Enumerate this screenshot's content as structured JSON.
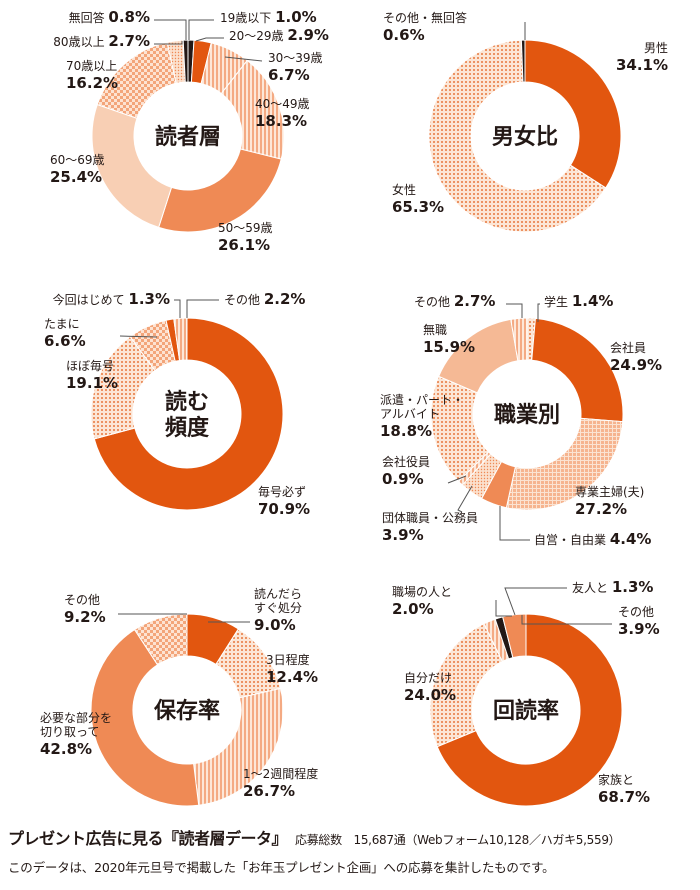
{
  "chart_data": [
    {
      "type": "pie",
      "title": "読者層",
      "categories": [
        "19歳以下",
        "20～29歳",
        "30～39歳",
        "40～49歳",
        "50～59歳",
        "60～69歳",
        "70歳以上",
        "80歳以上",
        "無回答"
      ],
      "values": [
        1.0,
        2.9,
        6.7,
        18.3,
        26.1,
        25.4,
        16.2,
        2.7,
        0.8
      ],
      "value_labels": [
        "1.0%",
        "2.9%",
        "6.7%",
        "18.3%",
        "26.1%",
        "25.4%",
        "16.2%",
        "2.7%",
        "0.8%"
      ]
    },
    {
      "type": "pie",
      "title": "男女比",
      "categories": [
        "男性",
        "女性",
        "その他・無回答"
      ],
      "values": [
        34.1,
        65.3,
        0.6
      ],
      "value_labels": [
        "34.1%",
        "65.3%",
        "0.6%"
      ]
    },
    {
      "type": "pie",
      "title": "読む頻度",
      "categories": [
        "毎号必ず",
        "ほぼ毎号",
        "たまに",
        "今回はじめて",
        "その他"
      ],
      "values": [
        70.9,
        19.1,
        6.6,
        1.3,
        2.2
      ],
      "value_labels": [
        "70.9%",
        "19.1%",
        "6.6%",
        "1.3%",
        "2.2%"
      ]
    },
    {
      "type": "pie",
      "title": "職業別",
      "categories": [
        "学生",
        "会社員",
        "専業主婦(夫)",
        "自営・自由業",
        "団体職員・公務員",
        "会社役員",
        "派遣・パート・アルバイト",
        "無職",
        "その他"
      ],
      "values": [
        1.4,
        24.9,
        27.2,
        4.4,
        3.9,
        0.9,
        18.8,
        15.9,
        2.7
      ],
      "value_labels": [
        "1.4%",
        "24.9%",
        "27.2%",
        "4.4%",
        "3.9%",
        "0.9%",
        "18.8%",
        "15.9%",
        "2.7%"
      ]
    },
    {
      "type": "pie",
      "title": "保存率",
      "categories": [
        "読んだらすぐ処分",
        "3日程度",
        "1～2週間程度",
        "必要な部分を切り取って",
        "その他"
      ],
      "values": [
        9.0,
        12.4,
        26.7,
        42.8,
        9.2
      ],
      "value_labels": [
        "9.0%",
        "12.4%",
        "26.7%",
        "42.8%",
        "9.2%"
      ]
    },
    {
      "type": "pie",
      "title": "回読率",
      "categories": [
        "家族と",
        "自分だけ",
        "職場の人と",
        "友人と",
        "その他"
      ],
      "values": [
        68.7,
        24.0,
        2.0,
        1.3,
        3.9
      ],
      "value_labels": [
        "68.7%",
        "24.0%",
        "2.0%",
        "1.3%",
        "3.9%"
      ]
    }
  ],
  "colors": {
    "dark_orange": "#e2560f",
    "mid_orange": "#ef8a55",
    "light_orange": "#f5b995",
    "pale_orange": "#f8cfb4",
    "outline": "#231815"
  },
  "footer": {
    "title": "プレゼント広告に見る『読者層データ』",
    "summary": "応募総数　15,687通（Webフォーム10,128／ハガキ5,559）",
    "note": "このデータは、2020年元旦号で掲載した「お年玉プレゼント企画」への応募を集計したものです。"
  }
}
